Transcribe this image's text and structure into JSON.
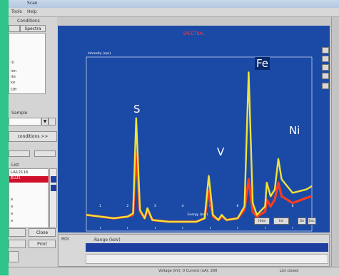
{
  "window": {
    "title": "Scan"
  },
  "menu": {
    "items": [
      "Tools",
      "Help"
    ]
  },
  "left_panel": {
    "conditions_header": "Conditions",
    "tabs": [
      "Spectra"
    ],
    "list_rows": [
      "ii)",
      "ion",
      "ite",
      "ke",
      "Off"
    ],
    "sample_label": "Sample",
    "conditions_button": "conditions >>",
    "list_label": "List",
    "file_items": [
      "LA12116",
      "ELU1",
      "e",
      "e",
      "e",
      "e"
    ],
    "buttons": {
      "close": "Close",
      "print": "Print"
    }
  },
  "spectrum": {
    "title": "SPECTRAL",
    "y_label": "Intensity (cps)",
    "x_label": "Energy (keV)",
    "x_ticks": [
      "1",
      "2",
      "3",
      "4",
      "5",
      "6",
      "7",
      "8"
    ],
    "peak_labels": [
      "S",
      "V",
      "Fe",
      "Ni"
    ],
    "buttons": [
      "Hide",
      "Int",
      "Ok",
      "Esc"
    ],
    "colors": {
      "background": "#1b4aa6",
      "series_a": "#f0e23a",
      "series_b": "#ff3b1e",
      "title": "#ff3a3a"
    }
  },
  "chart_data": {
    "type": "line",
    "title": "SPECTRAL",
    "xlabel": "Energy (keV)",
    "ylabel": "Intensity (cps)",
    "xlim": [
      0.5,
      8.7
    ],
    "ylim": [
      0,
      1
    ],
    "series": [
      {
        "values": [
          [
            0.5,
            0.07
          ],
          [
            1.0,
            0.06
          ],
          [
            1.5,
            0.05
          ],
          [
            2.0,
            0.06
          ],
          [
            2.2,
            0.08
          ],
          [
            2.31,
            0.64
          ],
          [
            2.45,
            0.1
          ],
          [
            2.62,
            0.05
          ],
          [
            2.72,
            0.11
          ],
          [
            2.9,
            0.04
          ],
          [
            3.5,
            0.03
          ],
          [
            4.5,
            0.03
          ],
          [
            4.8,
            0.05
          ],
          [
            4.95,
            0.3
          ],
          [
            5.1,
            0.07
          ],
          [
            5.3,
            0.04
          ],
          [
            5.42,
            0.07
          ],
          [
            5.6,
            0.04
          ],
          [
            6.0,
            0.05
          ],
          [
            6.25,
            0.12
          ],
          [
            6.4,
            0.91
          ],
          [
            6.55,
            0.14
          ],
          [
            6.7,
            0.07
          ],
          [
            7.0,
            0.12
          ],
          [
            7.06,
            0.26
          ],
          [
            7.2,
            0.18
          ],
          [
            7.35,
            0.22
          ],
          [
            7.48,
            0.4
          ],
          [
            7.6,
            0.28
          ],
          [
            8.0,
            0.2
          ],
          [
            8.5,
            0.22
          ],
          [
            8.7,
            0.24
          ]
        ]
      },
      {
        "values": [
          [
            0.5,
            0.07
          ],
          [
            1.0,
            0.06
          ],
          [
            1.5,
            0.05
          ],
          [
            2.0,
            0.06
          ],
          [
            2.2,
            0.07
          ],
          [
            2.31,
            0.43
          ],
          [
            2.45,
            0.09
          ],
          [
            2.62,
            0.05
          ],
          [
            2.72,
            0.1
          ],
          [
            2.9,
            0.04
          ],
          [
            3.5,
            0.03
          ],
          [
            4.5,
            0.03
          ],
          [
            4.8,
            0.05
          ],
          [
            4.95,
            0.21
          ],
          [
            5.1,
            0.06
          ],
          [
            5.3,
            0.04
          ],
          [
            5.42,
            0.06
          ],
          [
            5.6,
            0.04
          ],
          [
            6.0,
            0.05
          ],
          [
            6.25,
            0.1
          ],
          [
            6.4,
            0.28
          ],
          [
            6.55,
            0.09
          ],
          [
            6.7,
            0.06
          ],
          [
            7.0,
            0.09
          ],
          [
            7.06,
            0.16
          ],
          [
            7.2,
            0.12
          ],
          [
            7.35,
            0.16
          ],
          [
            7.48,
            0.26
          ],
          [
            7.6,
            0.18
          ],
          [
            8.0,
            0.14
          ],
          [
            8.5,
            0.17
          ],
          [
            8.7,
            0.18
          ]
        ]
      }
    ],
    "peaks": [
      {
        "label": "S",
        "x": 2.31
      },
      {
        "label": "V",
        "x": 4.95
      },
      {
        "label": "Fe",
        "x": 6.4
      },
      {
        "label": "Ni",
        "x": 7.48
      }
    ],
    "grid": false
  },
  "roi": {
    "label": "ROI",
    "range_label": "Range (keV)"
  },
  "status": {
    "center": "Voltage (kV): 0 Current (uA): 200",
    "right": "List closed"
  }
}
